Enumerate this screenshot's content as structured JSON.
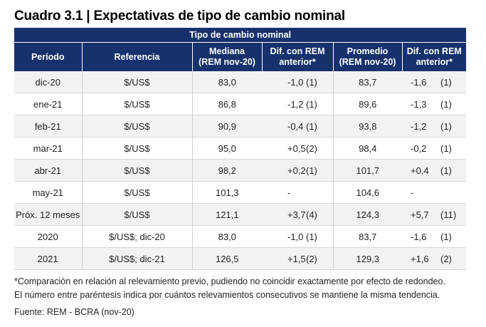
{
  "title": "Cuadro 3.1 | Expectativas de tipo de cambio nominal",
  "table": {
    "group_header": "Tipo de cambio nominal",
    "columns": {
      "periodo": "Período",
      "referencia": "Referencia",
      "mediana_1": "Mediana",
      "mediana_2": "(REM nov-20)",
      "dif1_1": "Dif. con REM",
      "dif1_2": "anterior*",
      "promedio_1": "Promedio",
      "promedio_2": "(REM nov-20)",
      "dif2_1": "Dif. con REM",
      "dif2_2": "anterior*"
    },
    "rows": [
      {
        "periodo": "dic-20",
        "referencia": "$/US$",
        "mediana": "83,0",
        "dif_med": "-1,0",
        "cnt_med": "(1)",
        "promedio": "83,7",
        "dif_prom": "-1,6",
        "cnt_prom": "(1)"
      },
      {
        "periodo": "ene-21",
        "referencia": "$/US$",
        "mediana": "86,8",
        "dif_med": "-1,2",
        "cnt_med": "(1)",
        "promedio": "89,6",
        "dif_prom": "-1,3",
        "cnt_prom": "(1)"
      },
      {
        "periodo": "feb-21",
        "referencia": "$/US$",
        "mediana": "90,9",
        "dif_med": "-0,4",
        "cnt_med": "(1)",
        "promedio": "93,8",
        "dif_prom": "-1,2",
        "cnt_prom": "(1)"
      },
      {
        "periodo": "mar-21",
        "referencia": "$/US$",
        "mediana": "95,0",
        "dif_med": "+0,5",
        "cnt_med": "(2)",
        "promedio": "98,4",
        "dif_prom": "-0,2",
        "cnt_prom": "(1)"
      },
      {
        "periodo": "abr-21",
        "referencia": "$/US$",
        "mediana": "98,2",
        "dif_med": "+0,2",
        "cnt_med": "(1)",
        "promedio": "101,7",
        "dif_prom": "+0,4",
        "cnt_prom": "(1)"
      },
      {
        "periodo": "may-21",
        "referencia": "$/US$",
        "mediana": "101,3",
        "dif_med": "-",
        "cnt_med": "",
        "promedio": "104,6",
        "dif_prom": "-",
        "cnt_prom": ""
      },
      {
        "periodo": "Próx. 12 meses",
        "referencia": "$/US$",
        "mediana": "121,1",
        "dif_med": "+3,7",
        "cnt_med": "(4)",
        "promedio": "124,3",
        "dif_prom": "+5,7",
        "cnt_prom": "(11)"
      },
      {
        "periodo": "2020",
        "referencia": "$/US$; dic-20",
        "mediana": "83,0",
        "dif_med": "-1,0",
        "cnt_med": "(1)",
        "promedio": "83,7",
        "dif_prom": "-1,6",
        "cnt_prom": "(1)"
      },
      {
        "periodo": "2021",
        "referencia": "$/US$; dic-21",
        "mediana": "126,5",
        "dif_med": "+1,5",
        "cnt_med": "(2)",
        "promedio": "129,3",
        "dif_prom": "+1,6",
        "cnt_prom": "(2)"
      }
    ]
  },
  "notes": {
    "line1": "*Comparación en relación al relevamiento previo, pudiendo no coincidir exactamente por efecto de redondeo.",
    "line2": "El número entre paréntesis indica por cuántos relevamientos consecutivos se mantiene la misma tendencia."
  },
  "source": "Fuente: REM - BCRA (nov-20)"
}
